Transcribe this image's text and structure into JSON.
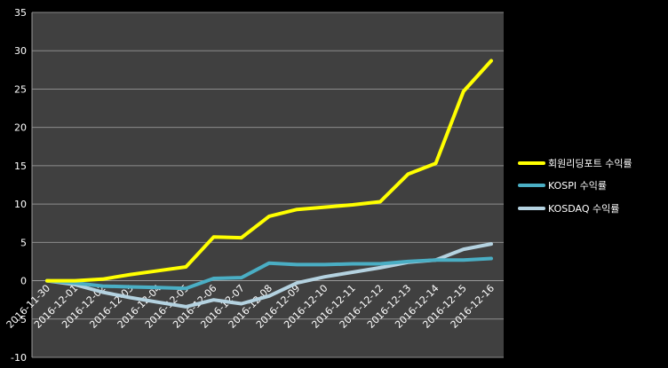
{
  "chart_data": {
    "type": "line",
    "categories": [
      "2016-11-30",
      "2016-12-01",
      "2016-12-02",
      "2016-12-03",
      "2016-12-04",
      "2016-12-05",
      "2016-12-06",
      "2016-12-07",
      "2016-12-08",
      "2016-12-09",
      "2016-12-10",
      "2016-12-11",
      "2016-12-12",
      "2016-12-13",
      "2016-12-14",
      "2016-12-15",
      "2016-12-16"
    ],
    "series": [
      {
        "name": "회원리딩포트 수익률",
        "color": "#ffff00",
        "values": [
          0,
          0,
          0.2,
          0.8,
          1.3,
          1.8,
          5.7,
          5.6,
          8.4,
          9.3,
          9.6,
          9.9,
          10.3,
          13.9,
          15.3,
          24.7,
          28.7
        ]
      },
      {
        "name": "KOSPI 수익률",
        "color": "#4aaec4",
        "values": [
          0,
          -0.3,
          -0.7,
          -0.8,
          -0.9,
          -1.0,
          0.3,
          0.4,
          2.3,
          2.1,
          2.1,
          2.2,
          2.2,
          2.5,
          2.7,
          2.7,
          2.9
        ]
      },
      {
        "name": "KOSDAQ 수익률",
        "color": "#b4d2e0",
        "values": [
          0,
          -0.5,
          -1.5,
          -2.2,
          -2.8,
          -3.4,
          -2.5,
          -3.0,
          -2.0,
          -0.3,
          0.5,
          1.1,
          1.7,
          2.4,
          2.7,
          4.1,
          4.8
        ]
      }
    ],
    "title": "",
    "xlabel": "",
    "ylabel": "",
    "ylim": [
      -10,
      35
    ],
    "yticks": [
      "-10",
      "-5",
      "0",
      "5",
      "10",
      "15",
      "20",
      "25",
      "30",
      "35"
    ],
    "grid": true,
    "legend": "right",
    "colors": {
      "background": "#000000",
      "plot_area": "#404040",
      "gridline": "#8c8c8c",
      "axis": "#9a9a9a",
      "text": "#ffffff"
    }
  }
}
